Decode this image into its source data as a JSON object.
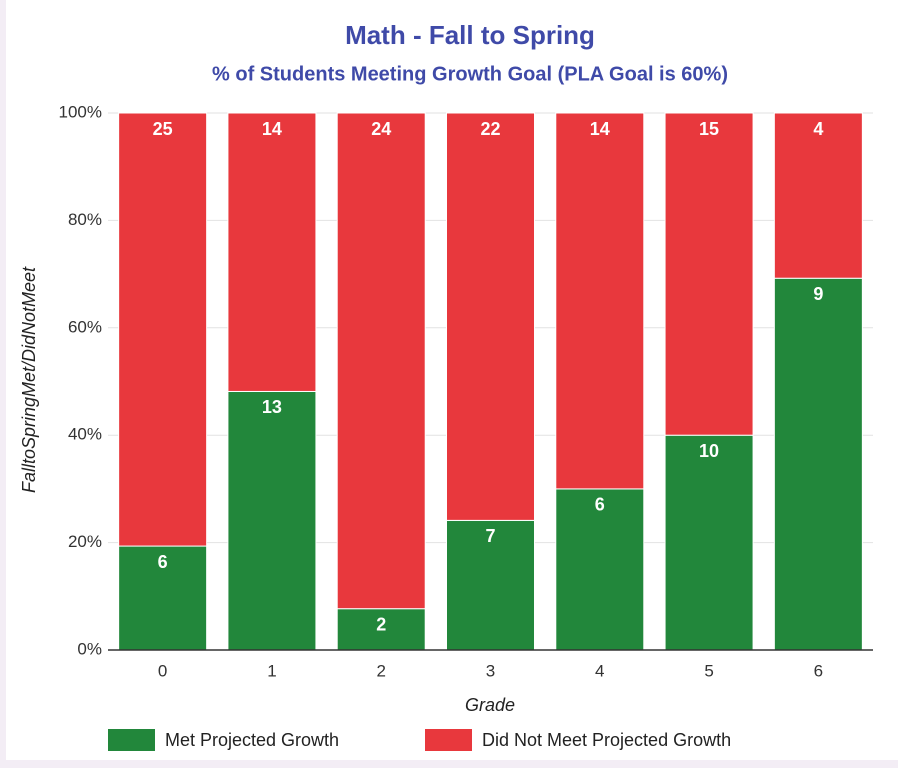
{
  "chart_data": {
    "type": "bar",
    "stacked": "percent",
    "title": "Math - Fall to Spring",
    "subtitle": "% of Students Meeting Growth Goal (PLA Goal is 60%)",
    "x_label": "Grade",
    "y_label": "FalltoSpringMet/DidNotMeet",
    "categories": [
      "0",
      "1",
      "2",
      "3",
      "4",
      "5",
      "6"
    ],
    "series": [
      {
        "name": "Met Projected Growth",
        "color": "#22873b",
        "values": [
          6,
          13,
          2,
          7,
          6,
          10,
          9
        ]
      },
      {
        "name": "Did Not Meet Projected Growth",
        "color": "#e8383d",
        "values": [
          25,
          14,
          24,
          22,
          14,
          15,
          4
        ]
      }
    ],
    "ylim": [
      0,
      100
    ],
    "yticks": [
      {
        "value": 0,
        "label": "0%"
      },
      {
        "value": 20,
        "label": "20%"
      },
      {
        "value": 40,
        "label": "40%"
      },
      {
        "value": 60,
        "label": "60%"
      },
      {
        "value": 80,
        "label": "80%"
      },
      {
        "value": 100,
        "label": "100%"
      }
    ],
    "grid": true,
    "legend": "bottom"
  }
}
